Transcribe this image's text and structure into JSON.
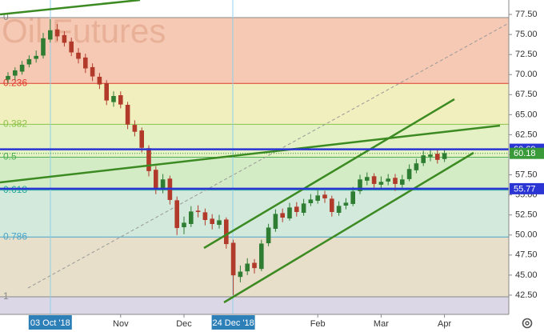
{
  "chart_data": {
    "type": "candlestick",
    "watermark": "Oil Futures",
    "categories": [
      null,
      null,
      null,
      null,
      null,
      null,
      "03 Oct '18",
      null,
      null,
      null,
      null,
      null,
      null,
      null,
      null,
      null,
      "Nov",
      null,
      null,
      null,
      null,
      null,
      null,
      null,
      null,
      "Dec",
      null,
      null,
      null,
      null,
      null,
      null,
      "24 Dec '18",
      null,
      null,
      null,
      null,
      null,
      null,
      null,
      null,
      null,
      null,
      null,
      "Feb",
      null,
      null,
      null,
      null,
      null,
      null,
      null,
      null,
      "Mar",
      null,
      null,
      null,
      null,
      null,
      null,
      null,
      null,
      "Apr"
    ],
    "open": [
      69.4,
      69.9,
      70.4,
      71.3,
      72.0,
      72.4,
      74.4,
      75.6,
      74.9,
      74.1,
      72.7,
      72.1,
      70.9,
      69.7,
      68.9,
      66.6,
      67.4,
      66.2,
      63.7,
      63.0,
      60.8,
      58.1,
      55.7,
      57.0,
      54.3,
      51.0,
      51.4,
      53.0,
      52.8,
      52.0,
      51.3,
      51.9,
      49.0,
      44.8,
      45.5,
      46.5,
      45.8,
      49.0,
      50.8,
      52.7,
      52.1,
      53.5,
      52.8,
      54.0,
      54.3,
      55.0,
      54.5,
      52.8,
      53.7,
      53.9,
      55.5,
      56.8,
      57.3,
      56.3,
      56.7,
      57.1,
      56.3,
      57.0,
      58.1,
      59.0,
      59.8,
      60.1,
      59.5
    ],
    "high": [
      70.3,
      70.9,
      71.7,
      72.4,
      73.0,
      75.2,
      76.9,
      76.3,
      75.4,
      74.6,
      73.3,
      72.6,
      71.4,
      70.2,
      69.3,
      67.9,
      67.9,
      66.6,
      64.3,
      63.4,
      61.2,
      58.6,
      57.6,
      57.4,
      54.8,
      52.3,
      53.6,
      53.7,
      53.3,
      52.6,
      52.5,
      52.2,
      49.4,
      46.2,
      47.1,
      47.0,
      49.4,
      51.4,
      53.2,
      53.3,
      54.0,
      54.1,
      54.5,
      55.1,
      55.6,
      55.5,
      54.9,
      54.2,
      54.6,
      56.0,
      57.5,
      57.8,
      57.7,
      57.3,
      57.6,
      57.6,
      57.5,
      58.8,
      59.5,
      60.5,
      60.7,
      60.6,
      60.6
    ],
    "low": [
      68.9,
      69.3,
      70.0,
      70.9,
      71.5,
      72.0,
      74.0,
      74.2,
      73.5,
      72.3,
      71.4,
      70.2,
      69.2,
      68.2,
      66.2,
      66.0,
      65.8,
      63.2,
      62.3,
      60.3,
      57.3,
      55.1,
      55.2,
      53.8,
      50.0,
      50.1,
      51.0,
      52.2,
      51.2,
      50.7,
      50.8,
      48.3,
      42.5,
      44.1,
      45.0,
      45.2,
      45.5,
      48.6,
      50.4,
      51.6,
      51.8,
      52.3,
      52.4,
      53.6,
      53.9,
      54.0,
      52.3,
      52.4,
      53.2,
      53.6,
      55.1,
      56.2,
      55.9,
      55.8,
      56.2,
      55.5,
      55.9,
      56.7,
      57.7,
      58.6,
      59.2,
      58.9,
      59.1
    ],
    "close": [
      69.8,
      70.5,
      71.2,
      71.9,
      72.3,
      74.5,
      75.5,
      74.8,
      74.0,
      72.8,
      72.0,
      70.8,
      69.8,
      68.8,
      66.8,
      67.3,
      66.3,
      63.8,
      62.9,
      60.9,
      58.0,
      55.9,
      56.9,
      54.4,
      50.9,
      51.5,
      52.9,
      52.9,
      51.9,
      51.4,
      51.8,
      48.9,
      45.0,
      45.4,
      46.4,
      45.9,
      48.9,
      50.9,
      52.6,
      52.2,
      53.4,
      52.9,
      53.9,
      54.4,
      54.9,
      54.6,
      52.9,
      53.6,
      54.0,
      55.4,
      56.9,
      57.2,
      56.4,
      56.6,
      57.0,
      56.4,
      56.9,
      58.2,
      58.9,
      59.9,
      60.0,
      59.4,
      60.18
    ],
    "up_color": "#2e7d32",
    "down_color": "#b23a2a",
    "ylim": [
      40.1,
      79.3
    ],
    "yticks": [
      {
        "value": 42.5,
        "label": "42.50"
      },
      {
        "value": 45,
        "label": "45.00"
      },
      {
        "value": 47.5,
        "label": "47.50"
      },
      {
        "value": 50,
        "label": "50.00"
      },
      {
        "value": 52.5,
        "label": "52.50"
      },
      {
        "value": 55,
        "label": "55.00"
      },
      {
        "value": 57.5,
        "label": "57.50"
      },
      {
        "value": 60,
        "label": "60.00"
      },
      {
        "value": 62.5,
        "label": "62.50"
      },
      {
        "value": 65,
        "label": "65.00"
      },
      {
        "value": 67.5,
        "label": "67.50"
      },
      {
        "value": 70,
        "label": "70.00"
      },
      {
        "value": 72.5,
        "label": "72.50"
      },
      {
        "value": 75,
        "label": "75.00"
      },
      {
        "value": 77.5,
        "label": "77.50"
      }
    ],
    "fib_levels": [
      {
        "label": "0",
        "value": 77.1,
        "color": "#888888",
        "zone": "#f6c9b4"
      },
      {
        "label": "0.236",
        "value": 68.9,
        "color": "#e03b2b",
        "zone": "#f2efbf"
      },
      {
        "label": "0.382",
        "value": 63.8,
        "color": "#8bc34a",
        "zone": "#e3f1c4"
      },
      {
        "label": "0.5",
        "value": 59.7,
        "color": "#4caf50",
        "zone": "#d3ecc6"
      },
      {
        "label": "0.618",
        "value": 55.6,
        "color": "#26a69a",
        "zone": "#d2e9dc"
      },
      {
        "label": "0.786",
        "value": 49.75,
        "color": "#4aa3c8",
        "zone": "#e7dfc9"
      },
      {
        "label": "1",
        "value": 42.3,
        "color": "#888888",
        "zone": "#dcd7e6"
      }
    ],
    "price_lines": [
      {
        "value": 60.69,
        "color": "#2a35d4"
      },
      {
        "value": 55.77,
        "color": "#2a35d4"
      }
    ],
    "last_price": {
      "value": 60.18,
      "color": "#3a9a3a"
    }
  }
}
